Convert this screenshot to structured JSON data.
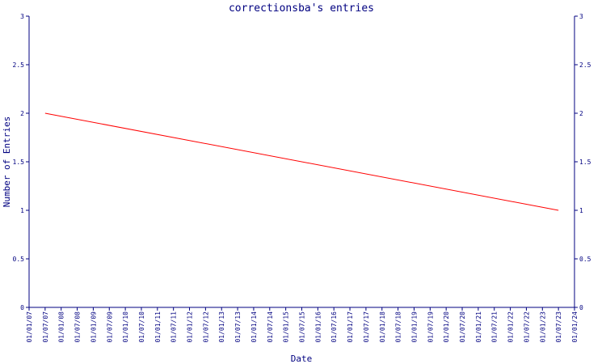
{
  "chart_data": {
    "type": "line",
    "title": "correctionsba's entries",
    "xlabel": "Date",
    "ylabel": "Number of Entries",
    "ylim": [
      0,
      3
    ],
    "y_ticks": [
      "0",
      "0.5",
      "1",
      "1.5",
      "2",
      "2.5",
      "3"
    ],
    "y_tick_values": [
      0,
      0.5,
      1,
      1.5,
      2,
      2.5,
      3
    ],
    "x_ticks": [
      "01/01/07",
      "01/07/07",
      "01/01/08",
      "01/07/08",
      "01/01/09",
      "01/07/09",
      "01/01/10",
      "01/07/10",
      "01/01/11",
      "01/07/11",
      "01/01/12",
      "01/07/12",
      "01/01/13",
      "01/07/13",
      "01/01/14",
      "01/07/14",
      "01/01/15",
      "01/07/15",
      "01/01/16",
      "01/07/16",
      "01/01/17",
      "01/07/17",
      "01/01/18",
      "01/07/18",
      "01/01/19",
      "01/07/19",
      "01/01/20",
      "01/07/20",
      "01/01/21",
      "01/07/21",
      "01/01/22",
      "01/07/22",
      "01/01/23",
      "01/07/23",
      "01/01/24"
    ],
    "series": [
      {
        "x": [
          "01/07/07",
          "01/07/23"
        ],
        "values": [
          2,
          1
        ]
      }
    ],
    "grid": false,
    "colors": {
      "axis": "#000080",
      "line": "#ff0000",
      "title": "#000080"
    }
  }
}
